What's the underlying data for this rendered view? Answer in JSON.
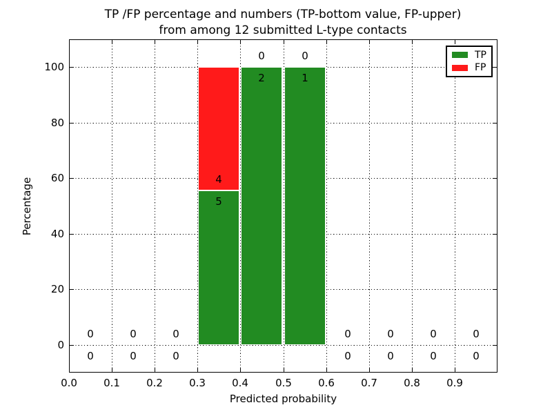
{
  "figure": {
    "background": "#ffffff"
  },
  "chart_data": {
    "type": "bar",
    "stacked": true,
    "title_lines": [
      "TP /FP percentage and numbers (TP-bottom value, FP-upper)",
      "from among 12 submitted L-type contacts"
    ],
    "xlabel": "Predicted probability",
    "ylabel": "Percentage",
    "xlim": [
      0.0,
      1.0
    ],
    "ylim": [
      -10,
      110
    ],
    "xtick_values": [
      0.0,
      0.1,
      0.2,
      0.3,
      0.4,
      0.5,
      0.6,
      0.7,
      0.8,
      0.9
    ],
    "xtick_labels": [
      "0.0",
      "0.1",
      "0.2",
      "0.3",
      "0.4",
      "0.5",
      "0.6",
      "0.7",
      "0.8",
      "0.9"
    ],
    "ytick_values": [
      0,
      20,
      40,
      60,
      80,
      100
    ],
    "ytick_labels": [
      "0",
      "20",
      "40",
      "60",
      "80",
      "100"
    ],
    "grid": "dotted",
    "bin_width": 0.1,
    "total_submitted": 12,
    "colors": {
      "tp": "#228B22",
      "fp": "#ff1a1a"
    },
    "bins": [
      {
        "x0": 0.0,
        "x1": 0.1,
        "tp_count": 0,
        "fp_count": 0,
        "tp_pct": 0,
        "fp_pct": 0
      },
      {
        "x0": 0.1,
        "x1": 0.2,
        "tp_count": 0,
        "fp_count": 0,
        "tp_pct": 0,
        "fp_pct": 0
      },
      {
        "x0": 0.2,
        "x1": 0.3,
        "tp_count": 0,
        "fp_count": 0,
        "tp_pct": 0,
        "fp_pct": 0
      },
      {
        "x0": 0.3,
        "x1": 0.4,
        "tp_count": 5,
        "fp_count": 4,
        "tp_pct": 55.56,
        "fp_pct": 44.44
      },
      {
        "x0": 0.4,
        "x1": 0.5,
        "tp_count": 2,
        "fp_count": 0,
        "tp_pct": 100,
        "fp_pct": 0
      },
      {
        "x0": 0.5,
        "x1": 0.6,
        "tp_count": 1,
        "fp_count": 0,
        "tp_pct": 100,
        "fp_pct": 0
      },
      {
        "x0": 0.6,
        "x1": 0.7,
        "tp_count": 0,
        "fp_count": 0,
        "tp_pct": 0,
        "fp_pct": 0
      },
      {
        "x0": 0.7,
        "x1": 0.8,
        "tp_count": 0,
        "fp_count": 0,
        "tp_pct": 0,
        "fp_pct": 0
      },
      {
        "x0": 0.8,
        "x1": 0.9,
        "tp_count": 0,
        "fp_count": 0,
        "tp_pct": 0,
        "fp_pct": 0
      },
      {
        "x0": 0.9,
        "x1": 1.0,
        "tp_count": 0,
        "fp_count": 0,
        "tp_pct": 0,
        "fp_pct": 0
      }
    ],
    "legend": {
      "position": "upper right",
      "entries": [
        {
          "label": "TP",
          "color": "#228B22"
        },
        {
          "label": "FP",
          "color": "#ff1a1a"
        }
      ]
    }
  }
}
